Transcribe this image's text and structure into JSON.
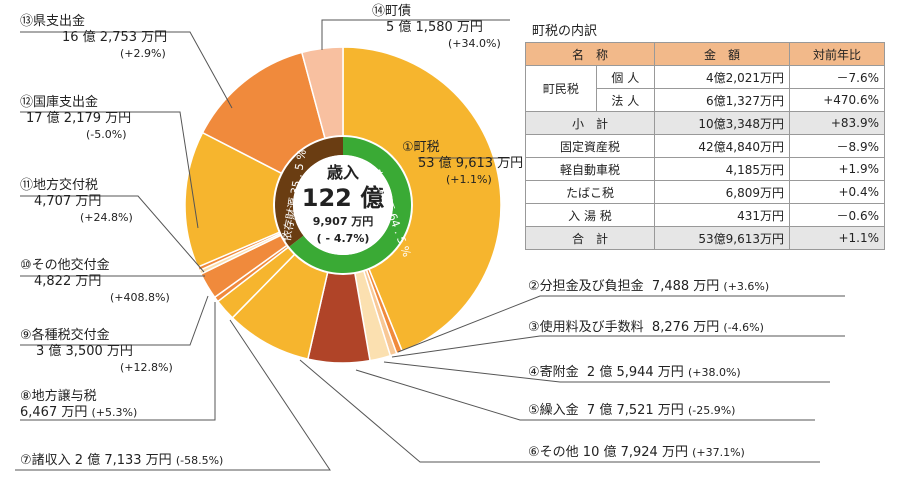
{
  "center": {
    "label": "歳入",
    "total_big": "122 億",
    "total_small": "9,907 万円",
    "change": "( - 4.7%)"
  },
  "ring": {
    "self_label": "自主財源 64 . 5 %",
    "dep_label": "依存財源 35 . 5 %"
  },
  "chart_data": {
    "type": "pie",
    "unit": "万円",
    "total": 1229907,
    "slices": [
      {
        "id": "s1",
        "label": "①町税",
        "value": 539613,
        "value_text": "53 億 9,613 万円",
        "change": "(+1.1%)",
        "color": "#f6b52e",
        "group": "self"
      },
      {
        "id": "s2",
        "label": "②分担金及び負担金",
        "value": 7488,
        "value_text": "7,488 万円",
        "change": "(+3.6%)",
        "color": "#f08a3c",
        "group": "self"
      },
      {
        "id": "s3",
        "label": "③使用料及び手数料",
        "value": 8276,
        "value_text": "8,276 万円",
        "change": "(-4.6%)",
        "color": "#f8c896",
        "group": "self"
      },
      {
        "id": "s4",
        "label": "④寄附金",
        "value": 25944,
        "value_text": "2 億 5,944 万円",
        "change": "(+38.0%)",
        "color": "#fbe0b0",
        "group": "self"
      },
      {
        "id": "s5",
        "label": "⑤繰入金",
        "value": 77521,
        "value_text": "7 億 7,521 万円",
        "change": "(-25.9%)",
        "color": "#b04428",
        "group": "self"
      },
      {
        "id": "s6",
        "label": "⑥その他",
        "value": 107924,
        "value_text": "10 億 7,924 万円",
        "change": "(+37.1%)",
        "color": "#f6b52e",
        "group": "self"
      },
      {
        "id": "s7",
        "label": "⑦諸収入",
        "value": 27133,
        "value_text": "2 億 7,133 万円",
        "change": "(-58.5%)",
        "color": "#f6b52e",
        "group": "self"
      },
      {
        "id": "s8",
        "label": "⑧地方譲与税",
        "value": 6467,
        "value_text": "6,467 万円",
        "change": "(+5.3%)",
        "color": "#f08a3c",
        "group": "dep"
      },
      {
        "id": "s9",
        "label": "⑨各種税交付金",
        "value": 33500,
        "value_text": "3 億 3,500 万円",
        "change": "(+12.8%)",
        "color": "#f08a3c",
        "group": "dep"
      },
      {
        "id": "s10",
        "label": "⑩その他交付金",
        "value": 4822,
        "value_text": "4,822 万円",
        "change": "(+408.8%)",
        "color": "#fbe0b0",
        "group": "dep"
      },
      {
        "id": "s11",
        "label": "⑪地方交付税",
        "value": 4707,
        "value_text": "4,707 万円",
        "change": "(+24.8%)",
        "color": "#f08a3c",
        "group": "dep"
      },
      {
        "id": "s12",
        "label": "⑫国庫支出金",
        "value": 172179,
        "value_text": "17 億 2,179 万円",
        "change": "(-5.0%)",
        "color": "#f6b52e",
        "group": "dep"
      },
      {
        "id": "s13",
        "label": "⑬県支出金",
        "value": 162753,
        "value_text": "16 億 2,753 万円",
        "change": "(+2.9%)",
        "color": "#f08a3c",
        "group": "dep"
      },
      {
        "id": "s14",
        "label": "⑭町債",
        "value": 51580,
        "value_text": "5 億 1,580 万円",
        "change": "(+34.0%)",
        "color": "#f8c0a0",
        "group": "dep"
      }
    ],
    "ring": [
      {
        "name": "自主財源",
        "percent": 64.5,
        "color": "#3aaa35"
      },
      {
        "name": "依存財源",
        "percent": 35.5,
        "color": "#6a3d12"
      }
    ]
  },
  "table": {
    "title": "町税の内訳",
    "headers": [
      "名　称",
      "金　額",
      "対前年比"
    ],
    "rows": [
      {
        "group": "町民税",
        "name": "個 人",
        "amount": "4億2,021万円",
        "ratio": "－7.6%"
      },
      {
        "group": "",
        "name": "法 人",
        "amount": "6億1,327万円",
        "ratio": "+470.6%"
      },
      {
        "name": "小　計",
        "amount": "10億3,348万円",
        "ratio": "+83.9%"
      },
      {
        "name": "固定資産税",
        "amount": "42億4,840万円",
        "ratio": "－8.9%"
      },
      {
        "name": "軽自動車税",
        "amount": "4,185万円",
        "ratio": "+1.9%"
      },
      {
        "name": "たばこ税",
        "amount": "6,809万円",
        "ratio": "+0.4%"
      },
      {
        "name": "入 湯 税",
        "amount": "431万円",
        "ratio": "－0.6%"
      },
      {
        "name": "合　計",
        "amount": "53億9,613万円",
        "ratio": "+1.1%"
      }
    ]
  }
}
